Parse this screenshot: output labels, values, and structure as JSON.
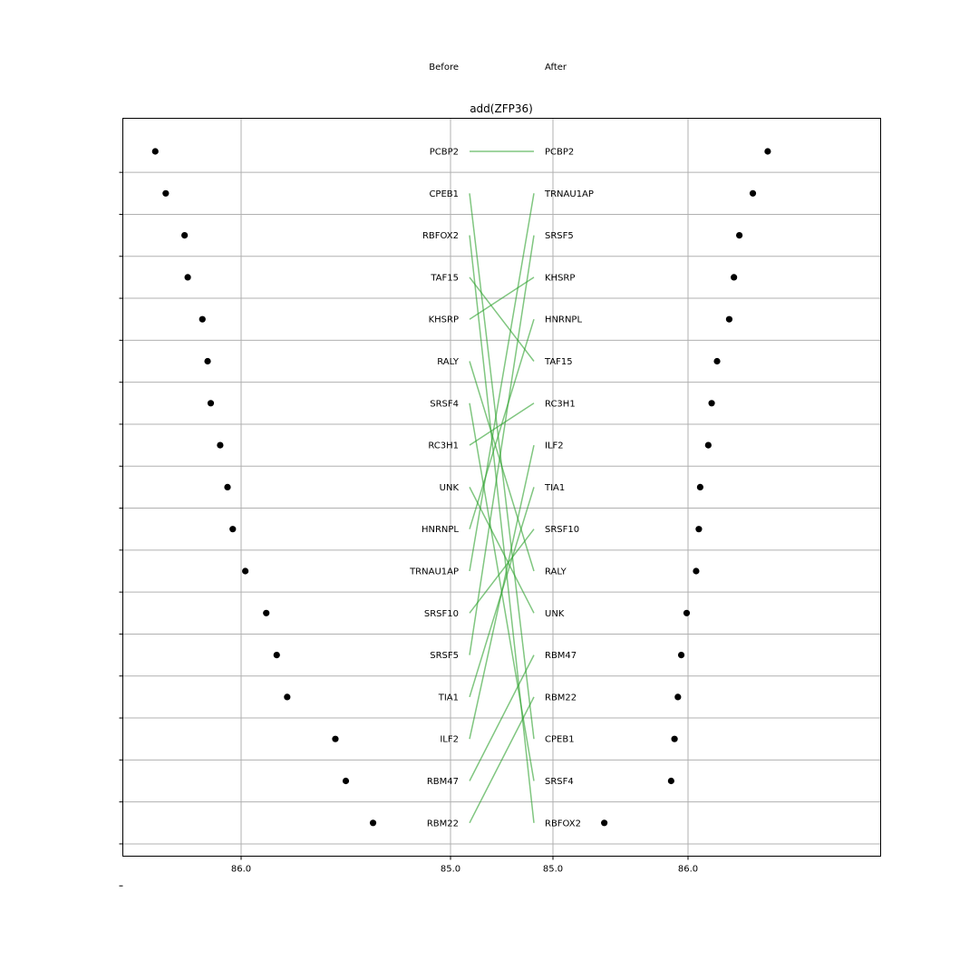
{
  "chart_data": {
    "type": "slope",
    "title": "add(ZFP36)",
    "left_header": "Before",
    "right_header": "After",
    "left_x_ticks": [
      {
        "value": 86.0,
        "label": "86.0"
      },
      {
        "value": 85.0,
        "label": "85.0"
      }
    ],
    "right_x_ticks": [
      {
        "value": 85.0,
        "label": "85.0"
      },
      {
        "value": 86.0,
        "label": "86.0"
      }
    ],
    "grid": true,
    "line_color": "#2ca02c",
    "point_color": "#000000",
    "before": [
      {
        "label": "PCBP2",
        "value": 86.41
      },
      {
        "label": "CPEB1",
        "value": 86.36
      },
      {
        "label": "RBFOX2",
        "value": 86.27
      },
      {
        "label": "TAF15",
        "value": 86.255
      },
      {
        "label": "KHSRP",
        "value": 86.185
      },
      {
        "label": "RALY",
        "value": 86.16
      },
      {
        "label": "SRSF4",
        "value": 86.145
      },
      {
        "label": "RC3H1",
        "value": 86.1
      },
      {
        "label": "UNK",
        "value": 86.065
      },
      {
        "label": "HNRNPL",
        "value": 86.04
      },
      {
        "label": "TRNAU1AP",
        "value": 85.98
      },
      {
        "label": "SRSF10",
        "value": 85.88
      },
      {
        "label": "SRSF5",
        "value": 85.83
      },
      {
        "label": "TIA1",
        "value": 85.78
      },
      {
        "label": "ILF2",
        "value": 85.55
      },
      {
        "label": "RBM47",
        "value": 85.5
      },
      {
        "label": "RBM22",
        "value": 85.37
      }
    ],
    "after": [
      {
        "label": "PCBP2",
        "value": 86.59
      },
      {
        "label": "TRNAU1AP",
        "value": 86.48
      },
      {
        "label": "SRSF5",
        "value": 86.38
      },
      {
        "label": "KHSRP",
        "value": 86.34
      },
      {
        "label": "HNRNPL",
        "value": 86.305
      },
      {
        "label": "TAF15",
        "value": 86.215
      },
      {
        "label": "RC3H1",
        "value": 86.175
      },
      {
        "label": "ILF2",
        "value": 86.15
      },
      {
        "label": "TIA1",
        "value": 86.09
      },
      {
        "label": "SRSF10",
        "value": 86.08
      },
      {
        "label": "RALY",
        "value": 86.06
      },
      {
        "label": "UNK",
        "value": 85.99
      },
      {
        "label": "RBM47",
        "value": 85.95
      },
      {
        "label": "RBM22",
        "value": 85.925
      },
      {
        "label": "CPEB1",
        "value": 85.9
      },
      {
        "label": "SRSF4",
        "value": 85.875
      },
      {
        "label": "RBFOX2",
        "value": 85.38
      }
    ]
  }
}
